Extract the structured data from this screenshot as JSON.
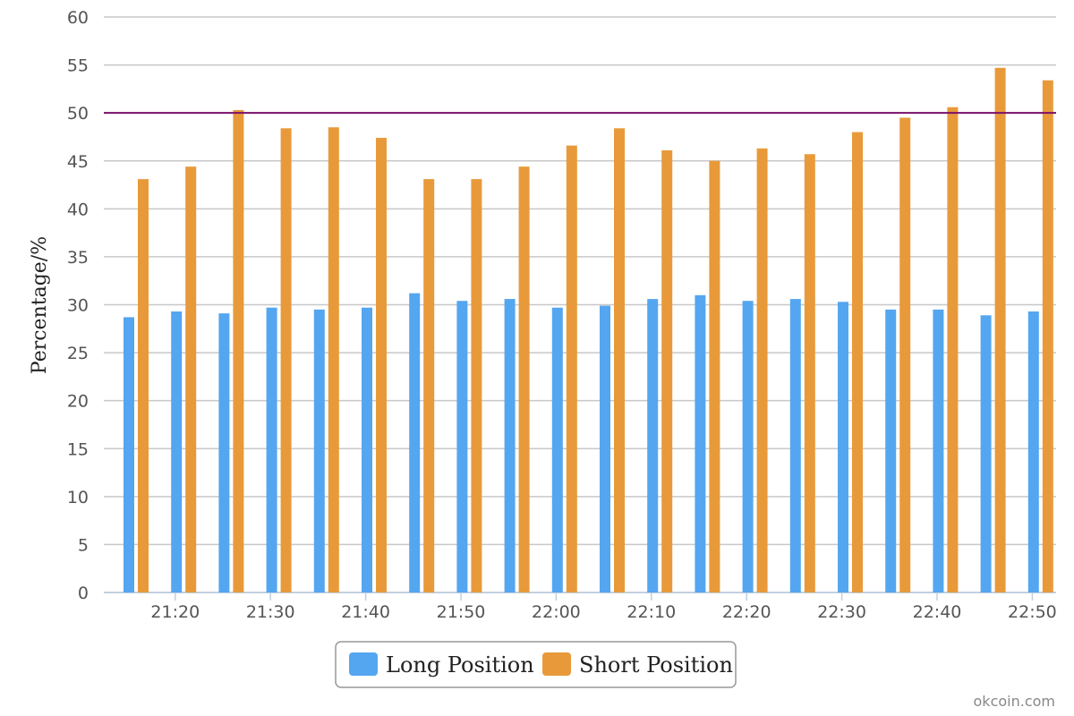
{
  "chart_data": {
    "type": "bar",
    "ylabel": "Percentage/%",
    "ylim": [
      0,
      60
    ],
    "yticks": [
      0,
      5,
      10,
      15,
      20,
      25,
      30,
      35,
      40,
      45,
      50,
      55,
      60
    ],
    "x_tick_labels": [
      "21:20",
      "21:30",
      "21:40",
      "21:50",
      "22:00",
      "22:10",
      "22:20",
      "22:30",
      "22:40",
      "22:50"
    ],
    "x": [
      "21:15",
      "21:20",
      "21:25",
      "21:30",
      "21:35",
      "21:40",
      "21:45",
      "21:50",
      "21:55",
      "22:00",
      "22:05",
      "22:10",
      "22:15",
      "22:20",
      "22:25",
      "22:30",
      "22:35",
      "22:40",
      "22:45",
      "22:50"
    ],
    "series": [
      {
        "name": "Long Position",
        "color": "#55a6f0",
        "values": [
          28.7,
          29.3,
          29.1,
          29.7,
          29.5,
          29.7,
          31.2,
          30.4,
          30.6,
          29.7,
          29.9,
          30.6,
          31.0,
          30.4,
          30.6,
          30.3,
          29.5,
          29.5,
          28.9,
          29.3
        ]
      },
      {
        "name": "Short Position",
        "color": "#e89a3a",
        "values": [
          43.1,
          44.4,
          50.3,
          48.4,
          48.5,
          47.4,
          43.1,
          43.1,
          44.4,
          46.6,
          48.4,
          46.1,
          45.0,
          46.3,
          45.7,
          48.0,
          49.5,
          50.6,
          54.7,
          53.4
        ]
      }
    ],
    "reference_line": {
      "value": 50,
      "color": "#7a0f6a"
    },
    "grid": true,
    "legend": {
      "position": "bottom-center"
    }
  },
  "credit": "okcoin.com"
}
